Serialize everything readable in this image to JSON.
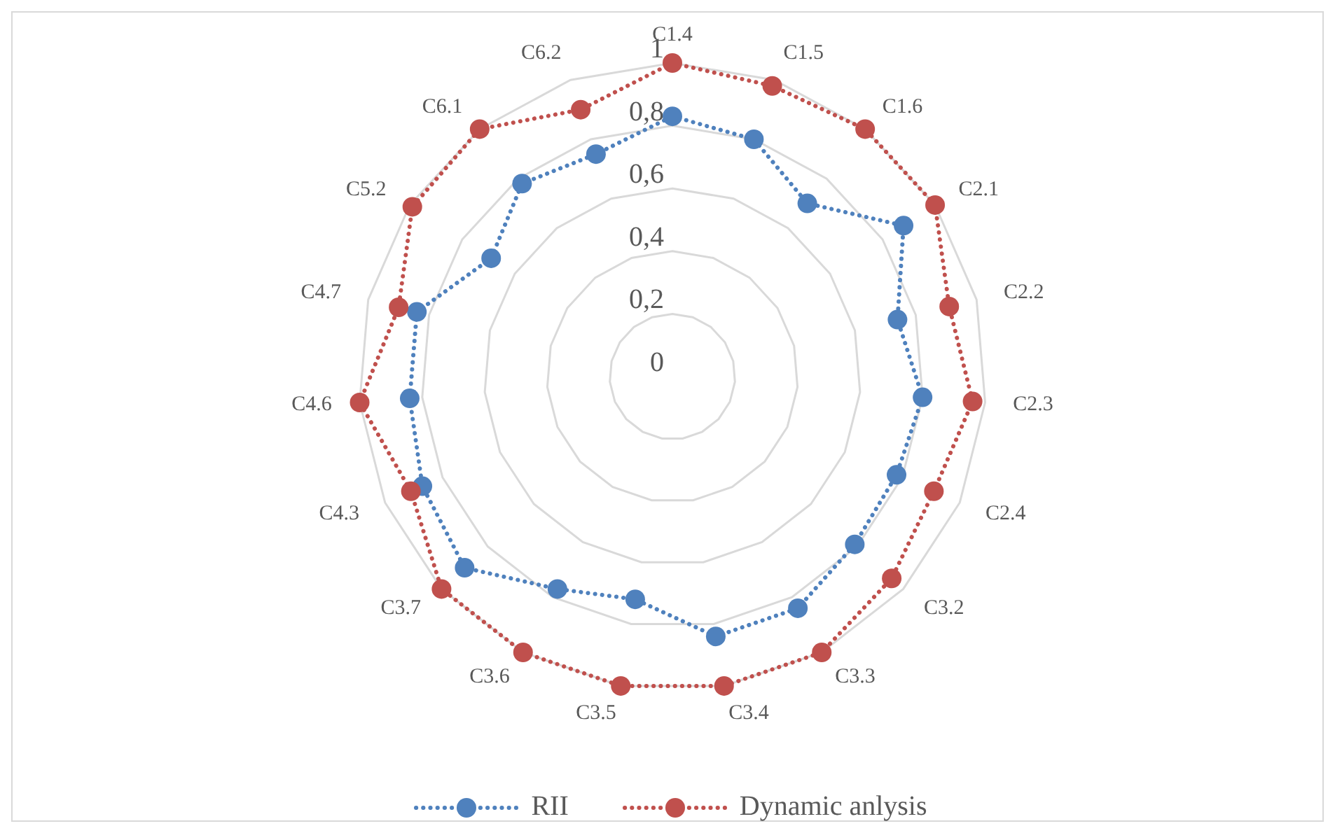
{
  "chart_data": {
    "type": "radar",
    "categories": [
      "C1.4",
      "C1.5",
      "C1.6",
      "C2.1",
      "C2.2",
      "C2.3",
      "C2.4",
      "C3.2",
      "C3.3",
      "C3.4",
      "C3.5",
      "C3.6",
      "C3.7",
      "C4.3",
      "C4.6",
      "C4.7",
      "C5.2",
      "C6.1",
      "C6.2"
    ],
    "series": [
      {
        "name": "RII",
        "color": "#4f81bd",
        "values": [
          0.83,
          0.8,
          0.7,
          0.88,
          0.74,
          0.8,
          0.78,
          0.79,
          0.84,
          0.84,
          0.72,
          0.77,
          0.9,
          0.87,
          0.84,
          0.84,
          0.69,
          0.78,
          0.75
        ]
      },
      {
        "name": "Dynamic anlysis",
        "color": "#c0504d",
        "values": [
          1.0,
          0.98,
          1.0,
          1.0,
          0.91,
          0.96,
          0.91,
          0.95,
          1.0,
          1.0,
          1.0,
          1.0,
          1.0,
          0.91,
          1.0,
          0.9,
          0.99,
          1.0,
          0.9
        ]
      }
    ],
    "ylim": [
      0,
      1
    ],
    "yticks": [
      0,
      {
        "value": 0.2,
        "label": "0,2"
      },
      {
        "value": 0.4,
        "label": "0,4"
      },
      {
        "value": 0.6,
        "label": "0,6"
      },
      {
        "value": 0.8,
        "label": "0,8"
      },
      1
    ],
    "grid": true,
    "legend": "bottom",
    "marker": "circle",
    "line_style": "dotted"
  }
}
